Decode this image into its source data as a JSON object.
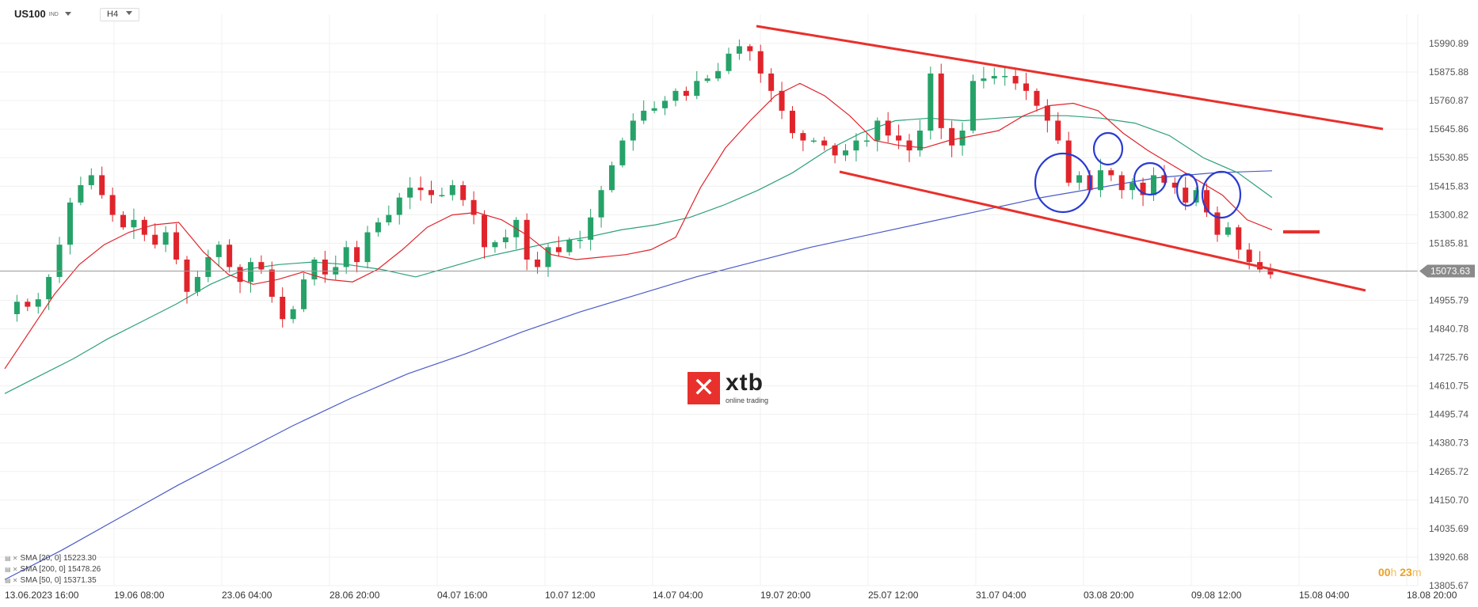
{
  "toolbar": {
    "symbol": "US100",
    "symbol_suffix": "IND",
    "timeframe": "H4"
  },
  "legend": [
    {
      "label": "SMA [20, 0]",
      "value": "15223.30",
      "color": "#e8302c"
    },
    {
      "label": "SMA [200, 0]",
      "value": "15478.26",
      "color": "#4b5bc8"
    },
    {
      "label": "SMA [50, 0]",
      "value": "15371.35",
      "color": "#2ea07a"
    }
  ],
  "watermark": {
    "brand": "xtb",
    "tagline": "online trading"
  },
  "timer": {
    "hours": "00",
    "h_unit": "h",
    "minutes": "23",
    "m_unit": "m"
  },
  "chart_data": {
    "type": "candlestick",
    "y_range": [
      13805.67,
      16048
    ],
    "y_ticks": [
      "15990.89",
      "15875.88",
      "15760.87",
      "15645.86",
      "15530.85",
      "15415.83",
      "15300.82",
      "15185.81",
      "14955.79",
      "14840.78",
      "14725.76",
      "14610.75",
      "14495.74",
      "14380.73",
      "14265.72",
      "14150.70",
      "14035.69",
      "13920.68",
      "13805.67"
    ],
    "x_ticks": [
      "13.06.2023  16:00",
      "19.06  08:00",
      "23.06  04:00",
      "28.06  20:00",
      "04.07  16:00",
      "10.07  12:00",
      "14.07  04:00",
      "19.07  20:00",
      "25.07  12:00",
      "31.07  04:00",
      "03.08  20:00",
      "09.08  12:00",
      "15.08  04:00",
      "18.08  20:00"
    ],
    "current_price": "15073.63",
    "candle_count": 115,
    "close_path": [
      14900,
      14950,
      14930,
      14960,
      15050,
      15180,
      15350,
      15420,
      15460,
      15380,
      15300,
      15250,
      15280,
      15220,
      15180,
      15230,
      15120,
      14990,
      15050,
      15130,
      15180,
      15090,
      15030,
      15110,
      15080,
      14970,
      14880,
      14920,
      15040,
      15120,
      15060,
      15090,
      15170,
      15110,
      15230,
      15270,
      15300,
      15370,
      15410,
      15400,
      15380,
      15380,
      15420,
      15360,
      15300,
      15170,
      15190,
      15210,
      15280,
      15120,
      15090,
      15170,
      15150,
      15200,
      15200,
      15290,
      15400,
      15500,
      15600,
      15680,
      15720,
      15730,
      15760,
      15800,
      15780,
      15840,
      15850,
      15880,
      15950,
      15980,
      15960,
      15870,
      15800,
      15720,
      15630,
      15600,
      15600,
      15580,
      15540,
      15560,
      15600,
      15600,
      15680,
      15620,
      15600,
      15560,
      15640,
      15870,
      15650,
      15580,
      15640,
      15840,
      15850,
      15860,
      15860,
      15830,
      15800,
      15740,
      15680,
      15600,
      15430,
      15460,
      15400,
      15480,
      15460,
      15400,
      15430,
      15380,
      15460,
      15430,
      15410,
      15350,
      15400,
      15310,
      15220,
      15250,
      15160,
      15110,
      15080,
      15060
    ],
    "sma_20_path": [
      14680,
      14830,
      14980,
      15100,
      15180,
      15230,
      15260,
      15270,
      15150,
      15060,
      15020,
      15040,
      15070,
      15040,
      15030,
      15080,
      15160,
      15250,
      15300,
      15310,
      15280,
      15220,
      15140,
      15120,
      15130,
      15140,
      15160,
      15210,
      15410,
      15570,
      15680,
      15780,
      15830,
      15780,
      15700,
      15600,
      15580,
      15570,
      15600,
      15620,
      15640,
      15700,
      15740,
      15750,
      15720,
      15630,
      15560,
      15500,
      15440,
      15380,
      15280,
      15240
    ],
    "sma_50_path": [
      14580,
      14650,
      14720,
      14800,
      14870,
      14940,
      15020,
      15080,
      15100,
      15110,
      15100,
      15080,
      15050,
      15090,
      15130,
      15160,
      15190,
      15210,
      15240,
      15260,
      15290,
      15340,
      15400,
      15470,
      15560,
      15630,
      15680,
      15690,
      15680,
      15690,
      15700,
      15700,
      15690,
      15670,
      15620,
      15530,
      15470,
      15370
    ],
    "sma_200_path": [
      13830,
      13950,
      14080,
      14210,
      14330,
      14450,
      14560,
      14660,
      14740,
      14830,
      14910,
      14980,
      15050,
      15110,
      15170,
      15220,
      15270,
      15320,
      15370,
      15410,
      15450,
      15470,
      15478
    ]
  }
}
